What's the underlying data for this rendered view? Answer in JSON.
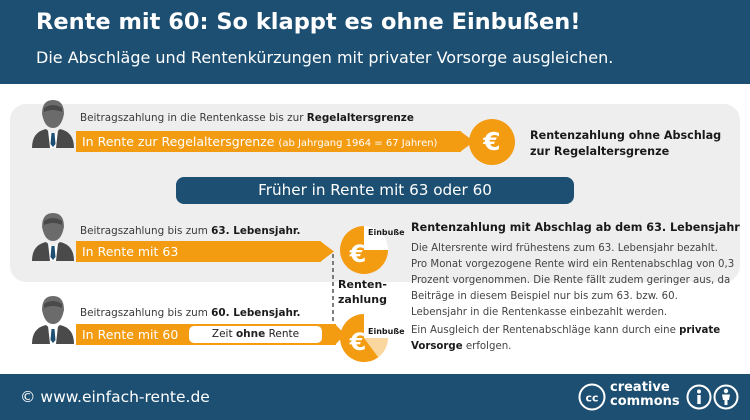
{
  "header": {
    "title": "Rente mit 60: So klappt es ohne Einbußen!",
    "subtitle": "Die Abschläge und Rentenkürzungen mit privater Vorsorge ausgleichen."
  },
  "top_section": {
    "payment_prefix": "Beitragszahlung in die Rentenkasse bis zur ",
    "payment_bold": "Regelaltersgrenze",
    "bar_main": "In Rente zur Regelaltersgrenze",
    "bar_paren": "(ab Jahrgang 1964 = 67 Jahren)",
    "result_label": "Rentenzahlung ohne Abschlag zur Regelaltersgrenze"
  },
  "banner": "Früher in Rente mit 63 oder 60",
  "row63": {
    "payment_prefix": "Beitragszahlung bis zum ",
    "payment_bold": "63. Lebensjahr.",
    "bar": "In Rente mit 63",
    "coin_tag": "Einbuße"
  },
  "row60": {
    "payment_prefix": "Beitragszahlung bis zum ",
    "payment_bold": "60. Lebensjahr.",
    "bar": "In Rente mit 60",
    "zeit_prefix": "Zeit ",
    "zeit_bold": "ohne",
    "zeit_suffix": " Rente",
    "coin_tag": "Einbuße"
  },
  "connector_label": "Renten-\nzahlung",
  "info": {
    "heading": "Rentenzahlung mit Abschlag ab dem 63. Lebensjahr",
    "paragraph": "Die Altersrente wird frühestens zum 63. Lebensjahr bezahlt. Pro Monat vorgezogene Rente wird ein Rentenabschlag von 0,3 Prozent vorgenommen. Die Rente fällt zudem geringer aus, da Beiträge in diesem Beispiel nur bis zum 63. bzw. 60. Lebensjahr in die Rentenkasse einbezahlt werden.",
    "ausgleich_prefix": "Ein Ausgleich der Rentenabschläge kann durch eine ",
    "ausgleich_bold": "private Vorsorge",
    "ausgleich_suffix": " erfolgen."
  },
  "footer": {
    "website": "© www.einfach-rente.de",
    "cc_line1": "creative",
    "cc_line2": "commons"
  },
  "icons": {
    "coin_symbol": "€",
    "cc_symbol": "cc"
  },
  "colors": {
    "primary": "#1d4f72",
    "accent": "#f39c12",
    "panel_gray": "#eeeeee"
  }
}
